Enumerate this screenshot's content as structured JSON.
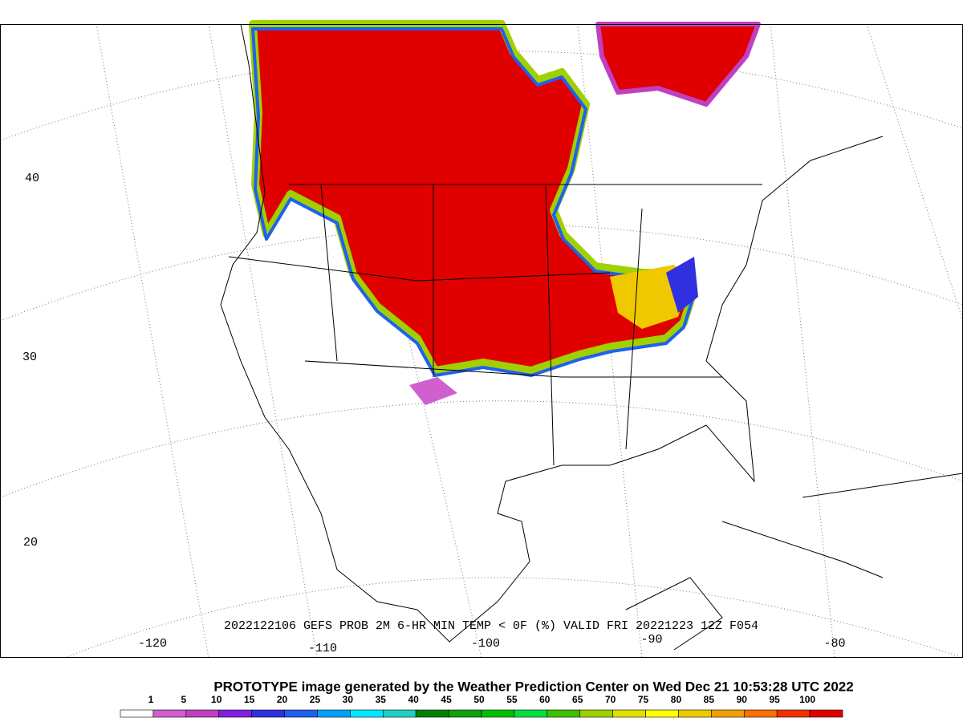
{
  "map": {
    "title": "2022122106 GEFS PROB 2M 6-HR MIN TEMP < 0F (%) VALID FRI 20221223 12Z F054",
    "credit": "PROTOTYPE image generated by the Weather Prediction Center on Wed Dec 21 10:53:28 UTC 2022",
    "lat_labels": [
      40,
      30,
      20
    ],
    "lon_labels": [
      -120,
      -110,
      -100,
      -90,
      -80
    ],
    "colorbar": {
      "labels": [
        1,
        5,
        10,
        15,
        20,
        25,
        30,
        35,
        40,
        45,
        50,
        55,
        60,
        65,
        70,
        75,
        80,
        85,
        90,
        95,
        100
      ],
      "colors": [
        "#ffffff",
        "#d060d0",
        "#c040c0",
        "#8020e0",
        "#3030e0",
        "#2060f0",
        "#00a0ff",
        "#00e8ff",
        "#20d0c0",
        "#008000",
        "#10a010",
        "#00c000",
        "#00e040",
        "#40c000",
        "#a0d000",
        "#e0e000",
        "#ffff00",
        "#f0c800",
        "#f0a000",
        "#ff7000",
        "#f03000",
        "#e00000"
      ]
    }
  }
}
